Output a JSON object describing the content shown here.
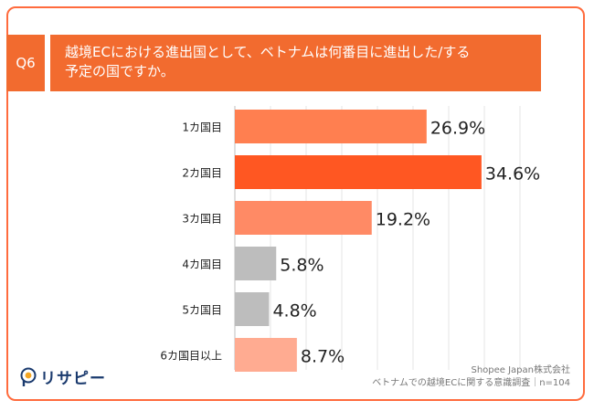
{
  "question": {
    "badge": "Q6",
    "title_line1": "越境ECにおける進出国として、ベトナムは何番目に進出した/する",
    "title_line2": "予定の国ですか。"
  },
  "chart_data": {
    "type": "bar",
    "orientation": "horizontal",
    "categories": [
      "1カ国目",
      "2カ国目",
      "3カ国目",
      "4カ国目",
      "5カ国目",
      "6カ国目以上"
    ],
    "values": [
      26.9,
      34.6,
      19.2,
      5.8,
      4.8,
      8.7
    ],
    "value_labels": [
      "26.9%",
      "34.6%",
      "19.2%",
      "5.8%",
      "4.8%",
      "8.7%"
    ],
    "colors": [
      "#ff7f50",
      "#ff5722",
      "#ff8a65",
      "#bdbdbd",
      "#bdbdbd",
      "#ffab91"
    ],
    "xlim": [
      0,
      40
    ],
    "grid": true
  },
  "logo": {
    "text": "リサピー"
  },
  "source": {
    "line1": "Shopee Japan株式会社",
    "line2": "ベトナムでの越境ECに関する意識調査｜n=104"
  }
}
